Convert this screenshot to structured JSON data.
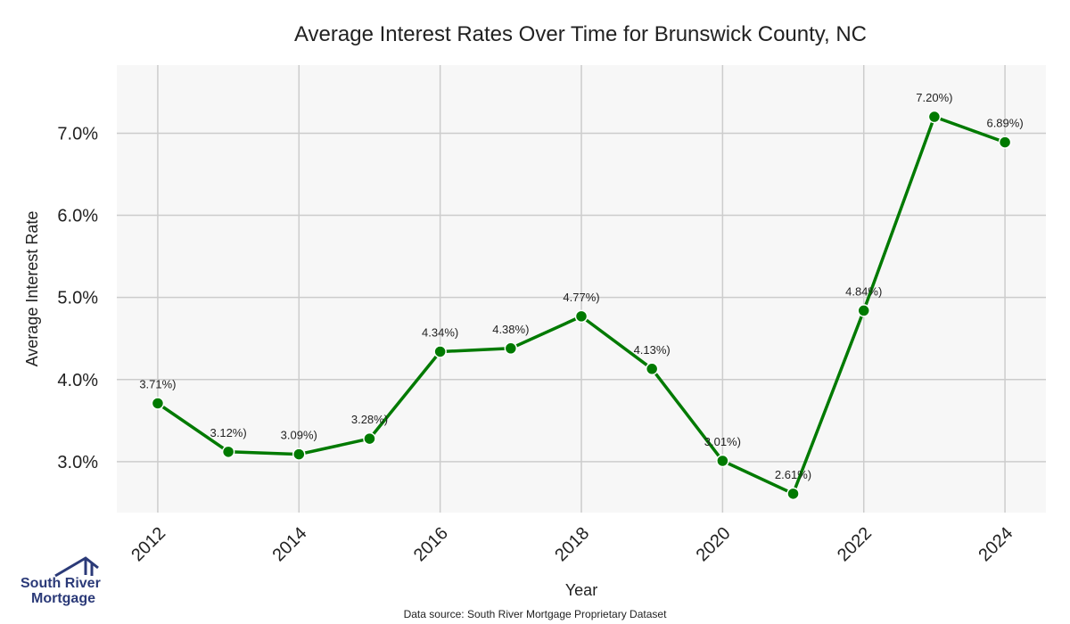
{
  "chart_data": {
    "type": "line",
    "title": "Average Interest Rates Over Time for Brunswick County, NC",
    "xlabel": "Year",
    "ylabel": "Average Interest Rate",
    "x": [
      2012,
      2013,
      2014,
      2015,
      2016,
      2017,
      2018,
      2019,
      2020,
      2021,
      2022,
      2023,
      2024
    ],
    "values": [
      3.71,
      3.12,
      3.09,
      3.28,
      4.34,
      4.38,
      4.77,
      4.13,
      3.01,
      2.61,
      4.84,
      7.2,
      6.89
    ],
    "data_labels": [
      "3.71%)",
      "3.12%)",
      "3.09%)",
      "3.28%)",
      "4.34%)",
      "4.38%)",
      "4.77%)",
      "4.13%)",
      "3.01%)",
      "2.61%)",
      "4.84%)",
      "7.20%)",
      "6.89%)"
    ],
    "xticks": [
      "2012",
      "2014",
      "2016",
      "2018",
      "2020",
      "2022",
      "2024"
    ],
    "yticks": [
      "3.0%",
      "4.0%",
      "5.0%",
      "6.0%",
      "7.0%"
    ],
    "ylim": [
      2.38,
      7.83
    ],
    "xlim": [
      2011.42,
      2024.58
    ],
    "grid": true,
    "line_color": "#007a00",
    "plot_background": "#f7f7f7",
    "grid_color": "#cccccc"
  },
  "source_note": "Data source: South River Mortgage Proprietary Dataset",
  "logo": {
    "line1": "South River",
    "line2": "Mortgage",
    "icon": "house-roof-icon",
    "color": "#2b3a78"
  }
}
